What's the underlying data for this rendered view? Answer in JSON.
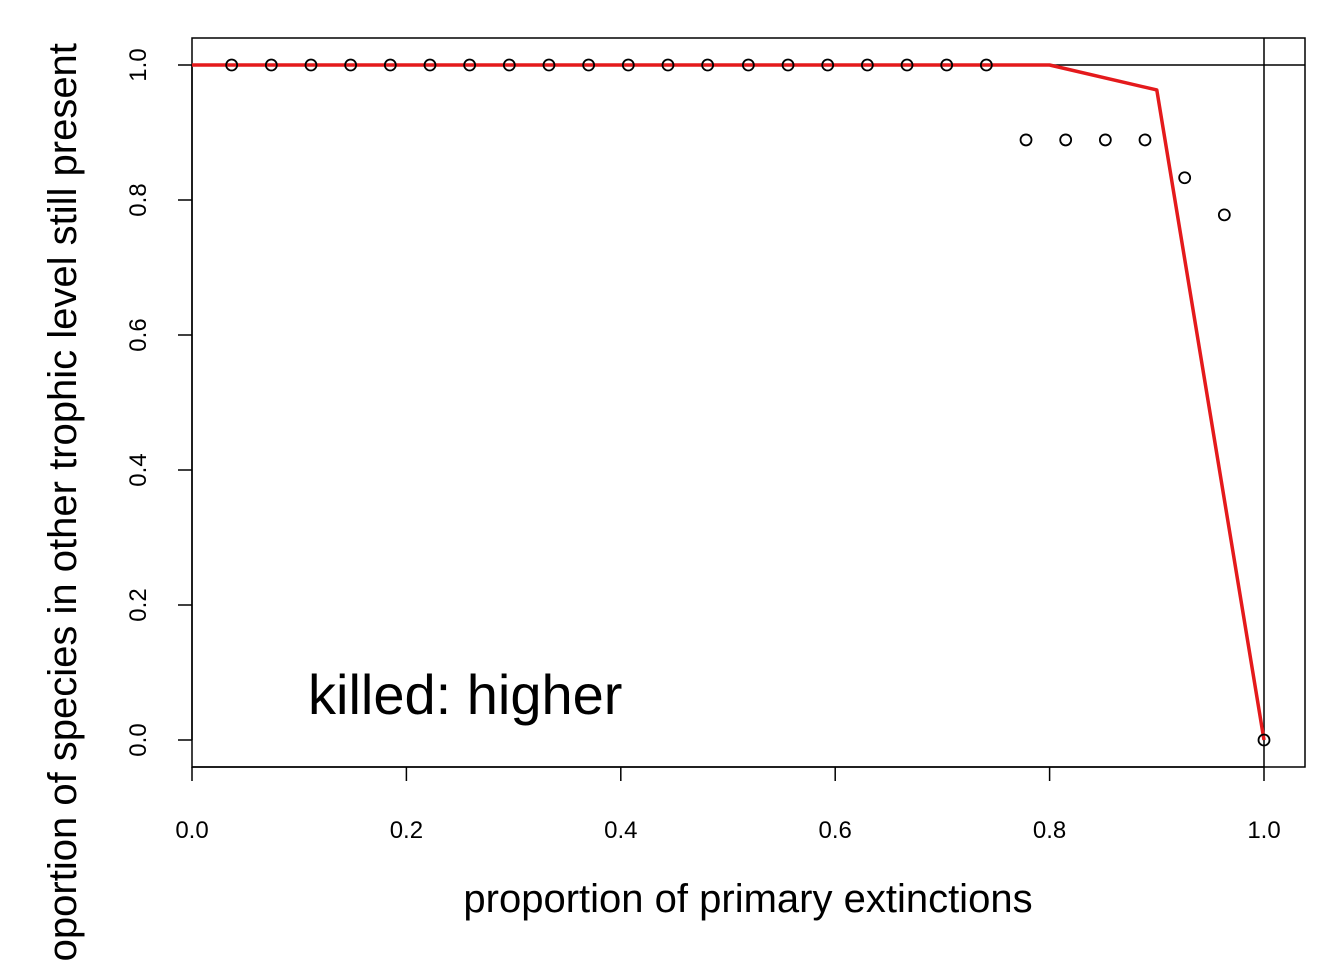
{
  "chart_data": {
    "type": "scatter",
    "title": "",
    "xlabel": "proportion of primary extinctions",
    "ylabel": "proportion of species in other trophic level still present",
    "xlim": [
      0,
      1
    ],
    "ylim": [
      0,
      1
    ],
    "x_ticks": [
      "0.0",
      "0.2",
      "0.4",
      "0.6",
      "0.8",
      "1.0"
    ],
    "y_ticks": [
      "0.0",
      "0.2",
      "0.4",
      "0.6",
      "0.8",
      "1.0"
    ],
    "grid": false,
    "reference_lines": {
      "horizontal": 1.0,
      "vertical": 1.0
    },
    "annotation": "killed:  higher",
    "series": [
      {
        "type": "scatter",
        "marker": "open-circle",
        "color": "#000000",
        "points": [
          [
            0.037,
            1.0
          ],
          [
            0.074,
            1.0
          ],
          [
            0.111,
            1.0
          ],
          [
            0.148,
            1.0
          ],
          [
            0.185,
            1.0
          ],
          [
            0.222,
            1.0
          ],
          [
            0.259,
            1.0
          ],
          [
            0.296,
            1.0
          ],
          [
            0.333,
            1.0
          ],
          [
            0.37,
            1.0
          ],
          [
            0.407,
            1.0
          ],
          [
            0.444,
            1.0
          ],
          [
            0.481,
            1.0
          ],
          [
            0.519,
            1.0
          ],
          [
            0.556,
            1.0
          ],
          [
            0.593,
            1.0
          ],
          [
            0.63,
            1.0
          ],
          [
            0.667,
            1.0
          ],
          [
            0.704,
            1.0
          ],
          [
            0.741,
            1.0
          ],
          [
            0.778,
            0.889
          ],
          [
            0.815,
            0.889
          ],
          [
            0.852,
            0.889
          ],
          [
            0.889,
            0.889
          ],
          [
            0.926,
            0.833
          ],
          [
            0.963,
            0.778
          ],
          [
            1.0,
            0.0
          ]
        ]
      },
      {
        "type": "line",
        "color": "#e41a1c",
        "points": [
          [
            0.0,
            1.0
          ],
          [
            0.8,
            1.0
          ],
          [
            0.9,
            0.963
          ],
          [
            1.0,
            0.0
          ]
        ]
      }
    ]
  }
}
